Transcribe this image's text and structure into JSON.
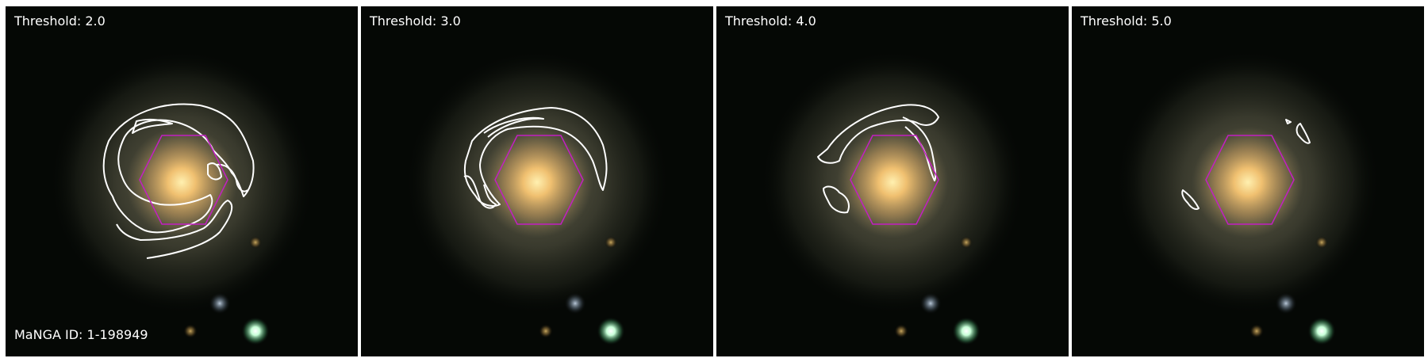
{
  "panels": [
    {
      "title": "Threshold: 2.0"
    },
    {
      "title": "Threshold: 3.0"
    },
    {
      "title": "Threshold: 4.0"
    },
    {
      "title": "Threshold: 5.0"
    }
  ],
  "manga_id": "MaNGA ID: 1-198949",
  "colors": {
    "contour": "#ffffff",
    "hexagon": "#c21fc2",
    "background": "#050805"
  }
}
